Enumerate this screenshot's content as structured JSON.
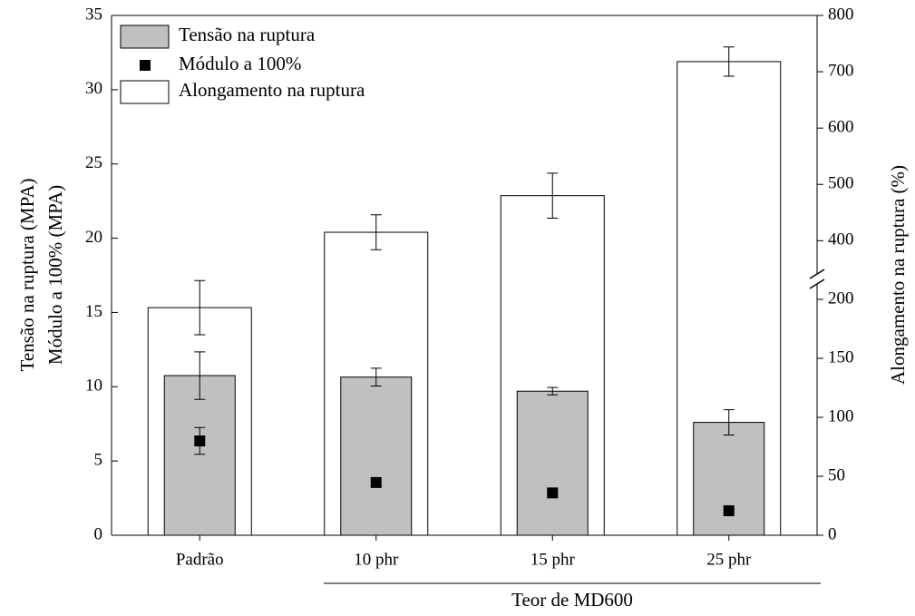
{
  "chart_data": {
    "type": "bar",
    "xlabel": "Teor de MD600",
    "ylabel": [
      "Tensão na ruptura (MPA)",
      "Módulo a 100% (MPA)"
    ],
    "y2label": "Alongamento na ruptura (%)",
    "categories": [
      "Padrão",
      "10 phr",
      "15 phr",
      "25 phr"
    ],
    "series": [
      {
        "name": "Tensão na ruptura",
        "type": "bar",
        "color": "#c0c0c0",
        "values": [
          10.75,
          10.65,
          9.7,
          7.6
        ],
        "errors": [
          1.6,
          0.6,
          0.25,
          0.85
        ]
      },
      {
        "name": "Módulo a 100%",
        "type": "scatter",
        "color": "#000000",
        "values": [
          6.35,
          3.55,
          2.85,
          1.65
        ],
        "errors": [
          0.9,
          null,
          null,
          null
        ]
      },
      {
        "name": "Alongamento na ruptura",
        "type": "bar",
        "axis": "y2",
        "color": "#ffffff",
        "values": [
          193,
          415,
          480,
          718
        ],
        "errors": [
          23,
          31,
          40,
          26
        ]
      }
    ],
    "ylim": [
      0,
      35
    ],
    "yticks": [
      0,
      5,
      10,
      15,
      20,
      25,
      30,
      35
    ],
    "y2lim": [
      0,
      800
    ],
    "y2ticks": [
      0,
      50,
      100,
      150,
      200,
      400,
      500,
      600,
      700,
      800
    ],
    "y2break": [
      210,
      320
    ],
    "legend": "upper left"
  }
}
